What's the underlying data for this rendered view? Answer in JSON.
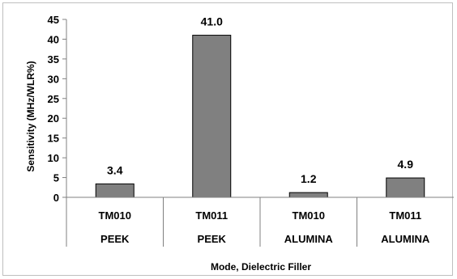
{
  "chart_data": {
    "type": "bar",
    "categories": [
      {
        "mode": "TM010",
        "filler": "PEEK"
      },
      {
        "mode": "TM011",
        "filler": "PEEK"
      },
      {
        "mode": "TM010",
        "filler": "ALUMINA"
      },
      {
        "mode": "TM011",
        "filler": "ALUMINA"
      }
    ],
    "values": [
      3.4,
      41.0,
      1.2,
      4.9
    ],
    "data_labels": [
      "3.4",
      "41.0",
      "1.2",
      "4.9"
    ],
    "title": "",
    "xlabel": "Mode, Dielectric Filler",
    "ylabel": "Sensitivity (MHz/WLR%)",
    "ylim": [
      0,
      45
    ],
    "yticks": [
      0,
      5,
      10,
      15,
      20,
      25,
      30,
      35,
      40,
      45
    ],
    "grid": false,
    "legend": "none",
    "bar_color": "#808080",
    "bar_edge_color": "#000000"
  }
}
